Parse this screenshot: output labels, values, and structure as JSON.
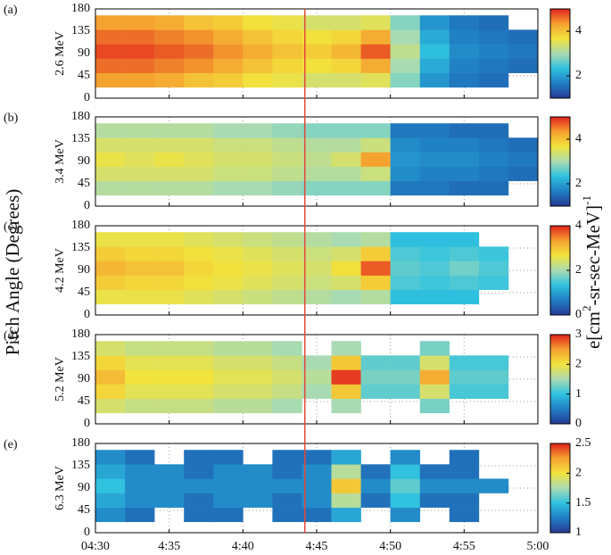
{
  "figure": {
    "ylabel": "Pitch Angle (Degrees)",
    "colorbar_label": [
      "e[cm",
      "2",
      "-sr-sec-MeV]",
      "-1"
    ],
    "colormap": [
      "#263a94",
      "#1f7fc4",
      "#30c2df",
      "#a9dbb2",
      "#f2e33d",
      "#f5a02f",
      "#e2231d"
    ],
    "marker_line": {
      "x": 14.2,
      "color": "#e34a3a"
    }
  },
  "chart_data": [
    {
      "type": "heatmap",
      "panel_label": "(a)",
      "ylabel": "2.6 MeV",
      "xlim": [
        0,
        30
      ],
      "xticks": [
        0,
        5,
        10,
        15,
        20,
        25,
        30
      ],
      "ylim": [
        0,
        180
      ],
      "yticks": [
        0,
        45,
        90,
        135,
        180
      ],
      "zlim": [
        1,
        5
      ],
      "zticks": [
        2,
        4
      ],
      "x_bins": [
        0,
        2,
        4,
        6,
        8,
        10,
        12,
        14,
        16,
        18,
        20,
        22,
        24,
        26,
        28,
        30
      ],
      "y_bins": [
        22,
        51,
        80,
        109,
        138,
        167
      ],
      "z": [
        [
          4.3,
          4.3,
          4.2,
          4.0,
          3.9,
          3.7,
          3.6,
          3.4,
          3.4,
          3.5,
          2.8,
          1.9,
          1.6,
          1.5,
          null
        ],
        [
          4.6,
          4.6,
          4.5,
          4.4,
          4.2,
          4.0,
          3.8,
          3.7,
          3.8,
          4.2,
          3.0,
          2.1,
          1.7,
          1.6,
          1.5
        ],
        [
          4.8,
          4.8,
          4.7,
          4.6,
          4.4,
          4.2,
          4.0,
          3.9,
          4.1,
          4.7,
          3.2,
          2.3,
          1.8,
          1.7,
          1.6
        ],
        [
          4.6,
          4.6,
          4.5,
          4.4,
          4.2,
          4.0,
          3.8,
          3.7,
          3.8,
          4.2,
          3.0,
          2.1,
          1.7,
          1.6,
          1.5
        ],
        [
          4.3,
          4.3,
          4.2,
          4.0,
          3.9,
          3.7,
          3.6,
          3.4,
          3.4,
          3.5,
          2.8,
          1.9,
          1.6,
          1.5,
          null
        ]
      ]
    },
    {
      "type": "heatmap",
      "panel_label": "(b)",
      "ylabel": "3.4 MeV",
      "xlim": [
        0,
        30
      ],
      "xticks": [
        0,
        5,
        10,
        15,
        20,
        25,
        30
      ],
      "ylim": [
        0,
        180
      ],
      "yticks": [
        0,
        45,
        90,
        135,
        180
      ],
      "zlim": [
        1,
        5
      ],
      "zticks": [
        2,
        4
      ],
      "x_bins": [
        0,
        2,
        4,
        6,
        8,
        10,
        12,
        14,
        16,
        18,
        20,
        22,
        24,
        26,
        28,
        30
      ],
      "y_bins": [
        22,
        51,
        80,
        109,
        138,
        167
      ],
      "z": [
        [
          3.1,
          3.1,
          3.1,
          3.1,
          3.0,
          3.0,
          2.9,
          2.8,
          2.8,
          2.8,
          1.6,
          1.6,
          1.5,
          1.5,
          null
        ],
        [
          3.4,
          3.4,
          3.4,
          3.4,
          3.3,
          3.3,
          3.2,
          3.1,
          3.1,
          3.3,
          1.8,
          1.7,
          1.7,
          1.6,
          1.5
        ],
        [
          3.6,
          3.5,
          3.6,
          3.5,
          3.4,
          3.4,
          3.3,
          3.2,
          3.4,
          4.3,
          1.9,
          1.8,
          1.8,
          1.7,
          1.6
        ],
        [
          3.4,
          3.4,
          3.4,
          3.4,
          3.3,
          3.3,
          3.2,
          3.1,
          3.1,
          3.3,
          1.8,
          1.7,
          1.7,
          1.6,
          1.5
        ],
        [
          3.1,
          3.1,
          3.1,
          3.1,
          3.0,
          3.0,
          2.9,
          2.8,
          2.8,
          2.8,
          1.6,
          1.6,
          1.5,
          1.5,
          null
        ]
      ]
    },
    {
      "type": "heatmap",
      "panel_label": "(c)",
      "ylabel": "4.2 MeV",
      "xlim": [
        0,
        30
      ],
      "xticks": [
        0,
        5,
        10,
        15,
        20,
        25,
        30
      ],
      "ylim": [
        0,
        180
      ],
      "yticks": [
        0,
        45,
        90,
        135,
        180
      ],
      "zlim": [
        0,
        4
      ],
      "zticks": [
        0,
        2,
        4
      ],
      "x_bins": [
        0,
        2,
        4,
        6,
        8,
        10,
        12,
        14,
        16,
        18,
        20,
        22,
        24,
        26,
        28,
        30
      ],
      "y_bins": [
        22,
        51,
        80,
        109,
        138,
        167
      ],
      "z": [
        [
          2.6,
          2.6,
          2.6,
          2.5,
          2.4,
          2.3,
          2.2,
          2.1,
          2.0,
          2.1,
          1.3,
          1.3,
          1.3,
          null,
          null
        ],
        [
          2.9,
          2.8,
          2.8,
          2.7,
          2.6,
          2.5,
          2.4,
          2.3,
          2.4,
          2.9,
          1.5,
          1.4,
          1.5,
          1.4,
          null
        ],
        [
          3.1,
          3.0,
          3.0,
          2.8,
          2.7,
          2.6,
          2.5,
          2.4,
          2.7,
          3.7,
          1.6,
          1.5,
          1.7,
          1.5,
          null
        ],
        [
          2.9,
          2.8,
          2.8,
          2.7,
          2.6,
          2.5,
          2.4,
          2.3,
          2.4,
          2.9,
          1.5,
          1.4,
          1.5,
          1.4,
          null
        ],
        [
          2.6,
          2.6,
          2.6,
          2.5,
          2.4,
          2.3,
          2.2,
          2.1,
          2.0,
          2.1,
          1.3,
          1.3,
          1.3,
          null,
          null
        ]
      ]
    },
    {
      "type": "heatmap",
      "panel_label": "(d)",
      "ylabel": "5.2 MeV",
      "xlim": [
        0,
        30
      ],
      "xticks": [
        0,
        5,
        10,
        15,
        20,
        25,
        30
      ],
      "ylim": [
        0,
        180
      ],
      "yticks": [
        0,
        45,
        90,
        135,
        180
      ],
      "zlim": [
        0,
        3
      ],
      "zticks": [
        0,
        1,
        2,
        3
      ],
      "x_bins": [
        0,
        2,
        4,
        6,
        8,
        10,
        12,
        14,
        16,
        18,
        20,
        22,
        24,
        26,
        28,
        30
      ],
      "y_bins": [
        22,
        51,
        80,
        109,
        138,
        167
      ],
      "z": [
        [
          1.8,
          1.7,
          1.7,
          1.7,
          1.6,
          1.6,
          1.5,
          null,
          1.5,
          null,
          null,
          1.3,
          null,
          null,
          null
        ],
        [
          2.1,
          1.9,
          1.9,
          1.9,
          1.8,
          1.8,
          1.7,
          1.5,
          2.2,
          1.2,
          1.2,
          1.8,
          1.1,
          1.1,
          null
        ],
        [
          2.3,
          2.0,
          2.0,
          2.0,
          1.9,
          1.9,
          1.8,
          1.6,
          2.9,
          1.3,
          1.3,
          2.4,
          1.2,
          1.2,
          null
        ],
        [
          2.1,
          1.9,
          1.9,
          1.9,
          1.8,
          1.8,
          1.7,
          1.5,
          2.2,
          1.2,
          1.2,
          1.8,
          1.1,
          1.1,
          null
        ],
        [
          1.8,
          1.7,
          1.7,
          1.7,
          1.6,
          1.6,
          1.5,
          null,
          1.5,
          null,
          null,
          1.3,
          null,
          null,
          null
        ]
      ]
    },
    {
      "type": "heatmap",
      "panel_label": "(e)",
      "ylabel": "6.3 MeV",
      "xlim": [
        0,
        30
      ],
      "xticks": [
        {
          "value": 0,
          "label": "04:30"
        },
        {
          "value": 5,
          "label": "4:35"
        },
        {
          "value": 10,
          "label": "4:40"
        },
        {
          "value": 15,
          "label": "4:45"
        },
        {
          "value": 20,
          "label": "4:50"
        },
        {
          "value": 25,
          "label": "4:55"
        },
        {
          "value": 30,
          "label": "5:00"
        }
      ],
      "ylim": [
        0,
        180
      ],
      "yticks": [
        0,
        45,
        90,
        135,
        180
      ],
      "zlim": [
        1,
        2.5
      ],
      "zticks": [
        1,
        1.5,
        2,
        2.5
      ],
      "x_bins": [
        0,
        2,
        4,
        6,
        8,
        10,
        12,
        14,
        16,
        18,
        20,
        22,
        24,
        26,
        28,
        30
      ],
      "y_bins": [
        22,
        51,
        80,
        109,
        138,
        167
      ],
      "z": [
        [
          1.3,
          1.2,
          null,
          1.2,
          1.2,
          null,
          1.2,
          1.2,
          1.4,
          null,
          1.3,
          null,
          1.2,
          null,
          null
        ],
        [
          1.4,
          1.3,
          1.3,
          1.2,
          1.3,
          1.3,
          1.2,
          1.3,
          1.8,
          1.2,
          1.5,
          1.2,
          1.2,
          null,
          null
        ],
        [
          1.5,
          1.3,
          1.3,
          1.3,
          1.3,
          1.3,
          1.3,
          1.3,
          2.1,
          1.3,
          1.6,
          1.3,
          1.3,
          1.3,
          null
        ],
        [
          1.4,
          1.3,
          1.3,
          1.2,
          1.3,
          1.3,
          1.2,
          1.3,
          1.8,
          1.2,
          1.5,
          1.2,
          1.2,
          null,
          null
        ],
        [
          1.3,
          1.2,
          null,
          1.2,
          1.2,
          null,
          1.2,
          1.2,
          1.4,
          null,
          1.3,
          null,
          1.2,
          null,
          null
        ]
      ]
    }
  ]
}
